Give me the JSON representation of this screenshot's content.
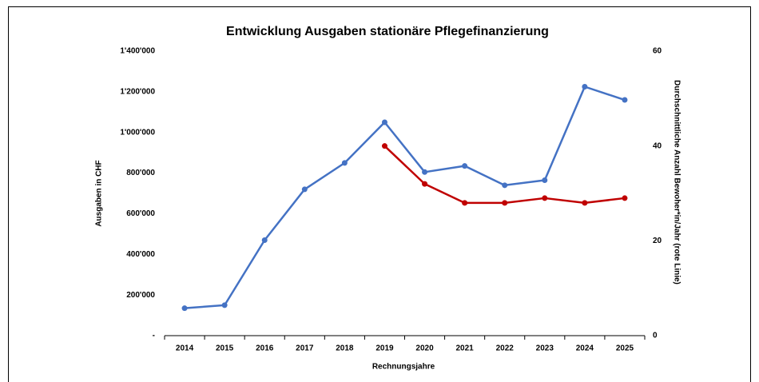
{
  "chart_data": {
    "type": "line",
    "title": "Entwicklung Ausgaben stationäre Pflegefinanzierung",
    "x_label": "Rechnungsjahre",
    "y_label": "Ausgaben in CHF",
    "y2_label": "Durchschnittliche Anzahl Bewoher*in/Jahr (rote Linie)",
    "categories": [
      "2014",
      "2015",
      "2016",
      "2017",
      "2018",
      "2019",
      "2020",
      "2021",
      "2022",
      "2023",
      "2024",
      "2025"
    ],
    "series": [
      {
        "color": "#4472c4",
        "values": [
          135000,
          150000,
          470000,
          720000,
          850000,
          1050000,
          805000,
          835000,
          740000,
          765000,
          1225000,
          1160000
        ]
      },
      {
        "color": "#c00000",
        "axis": "y2",
        "values": [
          null,
          null,
          null,
          null,
          null,
          40,
          32,
          28,
          28,
          29,
          28,
          29
        ]
      }
    ],
    "ylim": [
      0,
      1400000
    ],
    "yticks": [
      {
        "value": 0,
        "label": "-"
      },
      {
        "value": 200000,
        "label": "200'000"
      },
      {
        "value": 400000,
        "label": "400'000"
      },
      {
        "value": 600000,
        "label": "600'000"
      },
      {
        "value": 800000,
        "label": "800'000"
      },
      {
        "value": 1000000,
        "label": "1'000'000"
      },
      {
        "value": 1200000,
        "label": "1'200'000"
      },
      {
        "value": 1400000,
        "label": "1'400'000"
      }
    ],
    "y2lim": [
      0,
      60
    ],
    "y2ticks": [
      0,
      20,
      40,
      60
    ],
    "grid": false
  }
}
